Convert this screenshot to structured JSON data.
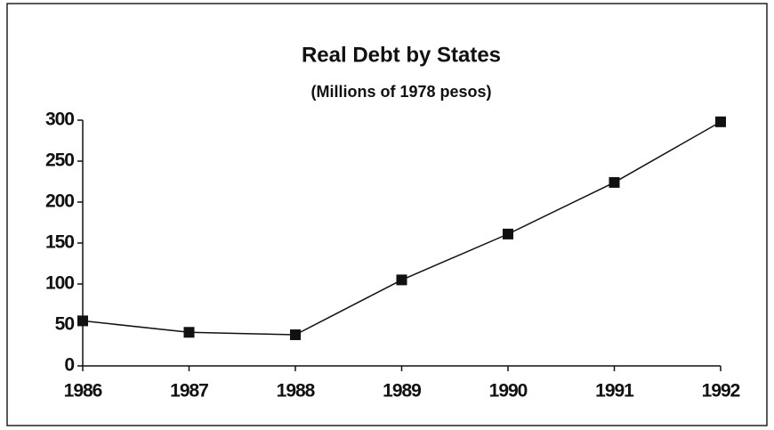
{
  "chart_data": {
    "type": "line",
    "title": "Real Debt by States",
    "subtitle": "(Millions of 1978 pesos)",
    "categories": [
      "1986",
      "1987",
      "1988",
      "1989",
      "1990",
      "1991",
      "1992"
    ],
    "series": [
      {
        "name": "Real Debt",
        "color": "#111111",
        "values": [
          55,
          41,
          38,
          105,
          161,
          224,
          298
        ]
      }
    ],
    "ylim": [
      0,
      300
    ],
    "yticks": [
      0,
      50,
      100,
      150,
      200,
      250,
      300
    ],
    "grid": false,
    "legend": false
  }
}
